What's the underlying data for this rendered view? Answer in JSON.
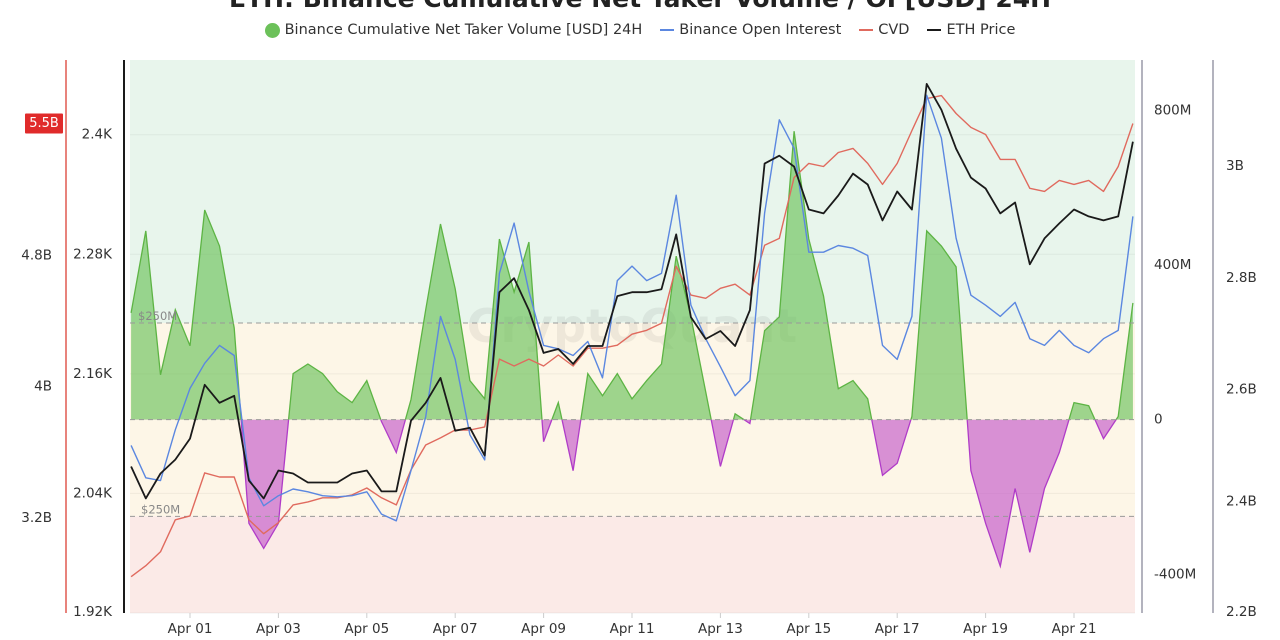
{
  "title": "ETH: Binance Cumulative Net Taker Volume / OI [USD] 24H",
  "watermark": "CryptoQuant",
  "legend": [
    {
      "label": "Binance Cumulative Net Taker Volume [USD] 24H",
      "color": "#6cc15a",
      "marker": "circle"
    },
    {
      "label": "Binance Open Interest",
      "color": "#5b87e0",
      "marker": "line"
    },
    {
      "label": "CVD",
      "color": "#e06a5e",
      "marker": "line"
    },
    {
      "label": "ETH Price",
      "color": "#1a1a1a",
      "marker": "line"
    }
  ],
  "chart_data": {
    "type": "line",
    "title": "ETH: Binance Cumulative Net Taker Volume / OI [USD] 24H",
    "grid": true,
    "legend_position": "top",
    "x_tick_labels": [
      "Apr 01",
      "Apr 03",
      "Apr 05",
      "Apr 07",
      "Apr 09",
      "Apr 11",
      "Apr 13",
      "Apr 15",
      "Apr 17",
      "Apr 19",
      "Apr 21"
    ],
    "axes": {
      "cvd": {
        "side": "left-outer",
        "color": "#e05a50",
        "ylim": [
          2.62,
          5.99
        ],
        "unit": "B",
        "ticks": [
          "3.2B",
          "4B",
          "4.8B"
        ],
        "tick_values": [
          3.2,
          4.0,
          4.8
        ],
        "current_value_label": "5.5B"
      },
      "eth_price": {
        "side": "left-inner",
        "color": "#1a1a1a",
        "ylim": [
          1920,
          2475
        ],
        "ticks": [
          "1.92K",
          "2.04K",
          "2.16K",
          "2.28K",
          "2.4K"
        ],
        "tick_values": [
          1920,
          2040,
          2160,
          2280,
          2400
        ]
      },
      "net_taker": {
        "side": "right-inner",
        "color": "#9a9aa8",
        "ylim": [
          -500,
          930
        ],
        "unit": "M",
        "ticks": [
          "-400M",
          "0",
          "400M",
          "800M"
        ],
        "tick_values": [
          -400,
          0,
          400,
          800
        ]
      },
      "open_interest": {
        "side": "right-outer",
        "color": "#9a9aa8",
        "ylim": [
          2.2,
          3.19
        ],
        "unit": "B",
        "ticks": [
          "2.2B",
          "2.4B",
          "2.6B",
          "2.8B",
          "3B"
        ],
        "tick_values": [
          2.2,
          2.4,
          2.6,
          2.8,
          3.0
        ]
      }
    },
    "thresholds": [
      {
        "value": 250,
        "label": "$250M",
        "axis": "net_taker"
      },
      {
        "value": -250,
        "label": "$250M",
        "axis": "net_taker"
      }
    ],
    "zone_colors": {
      "above": "#e8f5ec",
      "between": "#fdf6e7",
      "below": "#fbeae7"
    },
    "x": [
      "Mar 30 16:00",
      "Mar 31 00:00",
      "Mar 31 08:00",
      "Mar 31 16:00",
      "Apr 01 00:00",
      "Apr 01 08:00",
      "Apr 01 16:00",
      "Apr 02 00:00",
      "Apr 02 08:00",
      "Apr 02 16:00",
      "Apr 03 00:00",
      "Apr 03 08:00",
      "Apr 03 16:00",
      "Apr 04 00:00",
      "Apr 04 08:00",
      "Apr 04 16:00",
      "Apr 05 00:00",
      "Apr 05 08:00",
      "Apr 05 16:00",
      "Apr 06 00:00",
      "Apr 06 08:00",
      "Apr 06 16:00",
      "Apr 07 00:00",
      "Apr 07 08:00",
      "Apr 07 16:00",
      "Apr 08 00:00",
      "Apr 08 08:00",
      "Apr 08 16:00",
      "Apr 09 00:00",
      "Apr 09 08:00",
      "Apr 09 16:00",
      "Apr 10 00:00",
      "Apr 10 08:00",
      "Apr 10 16:00",
      "Apr 11 00:00",
      "Apr 11 08:00",
      "Apr 11 16:00",
      "Apr 12 00:00",
      "Apr 12 08:00",
      "Apr 12 16:00",
      "Apr 13 00:00",
      "Apr 13 08:00",
      "Apr 13 16:00",
      "Apr 14 00:00",
      "Apr 14 08:00",
      "Apr 14 16:00",
      "Apr 15 00:00",
      "Apr 15 08:00",
      "Apr 15 16:00",
      "Apr 16 00:00",
      "Apr 16 08:00",
      "Apr 16 16:00",
      "Apr 17 00:00",
      "Apr 17 08:00",
      "Apr 17 16:00",
      "Apr 18 00:00",
      "Apr 18 08:00",
      "Apr 18 16:00",
      "Apr 19 00:00",
      "Apr 19 08:00",
      "Apr 19 16:00",
      "Apr 20 00:00",
      "Apr 20 08:00",
      "Apr 20 16:00",
      "Apr 21 00:00",
      "Apr 21 08:00",
      "Apr 21 16:00",
      "Apr 22 00:00",
      "Apr 22 08:00"
    ],
    "series": [
      {
        "name": "Binance Cumulative Net Taker Volume [USD] 24H",
        "axis": "net_taker",
        "type": "area",
        "color_positive": "#6cc15a",
        "color_negative": "#c04cc8",
        "unit": "M",
        "values": [
          276,
          488,
          116,
          284,
          191,
          542,
          449,
          237,
          -268,
          -333,
          -268,
          119,
          144,
          119,
          72,
          44,
          101,
          -5,
          -85,
          52,
          284,
          506,
          338,
          101,
          54,
          467,
          330,
          459,
          -57,
          44,
          -132,
          119,
          62,
          119,
          54,
          101,
          144,
          423,
          266,
          72,
          -121,
          15,
          -10,
          230,
          266,
          746,
          467,
          320,
          80,
          101,
          54,
          -144,
          -113,
          8,
          488,
          449,
          395,
          -132,
          -268,
          -379,
          -178,
          -343,
          -178,
          -85,
          44,
          36,
          -49,
          8,
          302
        ]
      },
      {
        "name": "Binance Open Interest",
        "axis": "open_interest",
        "type": "line",
        "color": "#5b87e0",
        "unit": "B",
        "values": [
          2.5,
          2.442,
          2.437,
          2.528,
          2.602,
          2.647,
          2.679,
          2.661,
          2.442,
          2.392,
          2.41,
          2.422,
          2.417,
          2.41,
          2.408,
          2.41,
          2.417,
          2.377,
          2.365,
          2.455,
          2.551,
          2.731,
          2.654,
          2.519,
          2.474,
          2.808,
          2.898,
          2.776,
          2.679,
          2.673,
          2.661,
          2.686,
          2.621,
          2.795,
          2.821,
          2.795,
          2.808,
          2.948,
          2.751,
          2.691,
          2.641,
          2.589,
          2.616,
          2.916,
          3.083,
          3.032,
          2.846,
          2.846,
          2.858,
          2.853,
          2.84,
          2.679,
          2.654,
          2.731,
          3.127,
          3.05,
          2.871,
          2.769,
          2.751,
          2.731,
          2.756,
          2.691,
          2.679,
          2.706,
          2.679,
          2.666,
          2.691,
          2.706,
          2.91
        ]
      },
      {
        "name": "CVD",
        "axis": "cvd",
        "type": "line",
        "color": "#e06a5e",
        "unit": "B",
        "values": [
          2.841,
          2.908,
          2.993,
          3.188,
          3.212,
          3.474,
          3.449,
          3.449,
          3.188,
          3.103,
          3.17,
          3.279,
          3.297,
          3.322,
          3.322,
          3.34,
          3.382,
          3.322,
          3.279,
          3.492,
          3.644,
          3.687,
          3.735,
          3.735,
          3.754,
          4.167,
          4.125,
          4.167,
          4.125,
          4.192,
          4.125,
          4.234,
          4.234,
          4.252,
          4.319,
          4.343,
          4.386,
          4.733,
          4.557,
          4.538,
          4.599,
          4.624,
          4.557,
          4.861,
          4.903,
          5.274,
          5.36,
          5.341,
          5.426,
          5.451,
          5.36,
          5.232,
          5.36,
          5.56,
          5.755,
          5.773,
          5.664,
          5.579,
          5.536,
          5.384,
          5.384,
          5.208,
          5.189,
          5.256,
          5.232,
          5.256,
          5.189,
          5.341,
          5.603
        ]
      },
      {
        "name": "ETH Price",
        "axis": "eth_price",
        "type": "line",
        "color": "#1a1a1a",
        "unit": "USD",
        "values": [
          2067,
          2035,
          2060,
          2074,
          2095,
          2149,
          2131,
          2138,
          2053,
          2035,
          2063,
          2060,
          2051,
          2051,
          2051,
          2060,
          2063,
          2042,
          2042,
          2113,
          2131,
          2156,
          2103,
          2106,
          2078,
          2242,
          2256,
          2224,
          2181,
          2185,
          2170,
          2188,
          2188,
          2238,
          2242,
          2242,
          2245,
          2300,
          2217,
          2195,
          2203,
          2188,
          2224,
          2371,
          2379,
          2368,
          2325,
          2321,
          2339,
          2361,
          2350,
          2314,
          2343,
          2325,
          2451,
          2425,
          2386,
          2357,
          2346,
          2321,
          2332,
          2270,
          2296,
          2311,
          2325,
          2318,
          2314,
          2318,
          2393
        ]
      }
    ]
  }
}
